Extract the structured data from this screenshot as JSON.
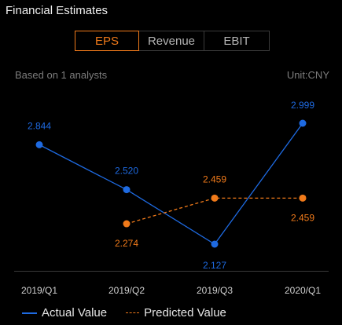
{
  "title": "Financial Estimates",
  "tabs": [
    {
      "label": "EPS",
      "active": true
    },
    {
      "label": "Revenue",
      "active": false
    },
    {
      "label": "EBIT",
      "active": false
    }
  ],
  "note_left": "Based on 1 analysts",
  "note_right": "Unit:CNY",
  "colors": {
    "actual": "#1e6ae1",
    "predicted": "#f07a1a",
    "axis": "#3a3a3a",
    "tick_label": "#cfcfcf"
  },
  "chart_data": {
    "type": "line",
    "categories": [
      "2019/Q1",
      "2019/Q2",
      "2019/Q3",
      "2020/Q1"
    ],
    "series": [
      {
        "name": "Actual Value",
        "style": "solid",
        "values": [
          2.844,
          2.52,
          2.127,
          2.999
        ],
        "labels": [
          "2.844",
          "2.520",
          "2.127",
          "2.999"
        ]
      },
      {
        "name": "Predicted Value",
        "style": "dashed",
        "values": [
          null,
          2.274,
          2.459,
          2.459
        ],
        "labels": [
          null,
          "2.274",
          "2.459",
          "2.459"
        ]
      }
    ],
    "ylim": [
      2.127,
      2.999
    ],
    "grid": false,
    "legend": "bottom-left"
  }
}
